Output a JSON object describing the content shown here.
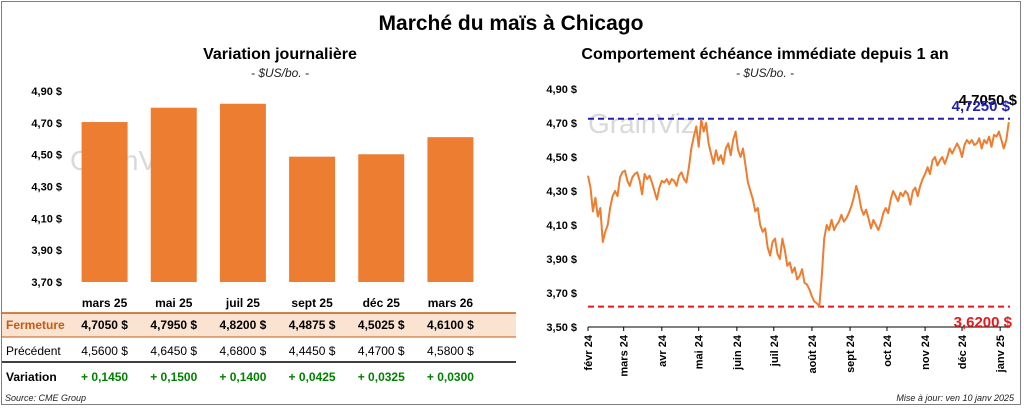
{
  "title": "Marché du maïs à Chicago",
  "colors": {
    "bar": "#ED7D31",
    "line": "#ED7D31",
    "high": "#1F1FB5",
    "low": "#E41A1C",
    "positive": "#008000",
    "row_highlight": "#FBE3D2"
  },
  "watermark": "GrainViz",
  "footer": {
    "source": "Source: CME Group",
    "updated": "Mise à jour: ven 10 janv 2025"
  },
  "chart_data": [
    {
      "type": "bar",
      "title": "Variation journalière",
      "subtitle": "- $US/bo. -",
      "categories": [
        "mars 25",
        "mai 25",
        "juil 25",
        "sept 25",
        "déc 25",
        "mars 26"
      ],
      "values": [
        4.705,
        4.795,
        4.82,
        4.4875,
        4.5025,
        4.61
      ],
      "ylim": [
        3.7,
        4.9
      ],
      "yticks": [
        "3,70 $",
        "3,90 $",
        "4,10 $",
        "4,30 $",
        "4,50 $",
        "4,70 $",
        "4,90 $"
      ],
      "grid": false,
      "table": [
        {
          "label": "Fermeture",
          "values": [
            "4,7050  $",
            "4,7950  $",
            "4,8200  $",
            "4,4875  $",
            "4,5025  $",
            "4,6100  $"
          ]
        },
        {
          "label": "Précédent",
          "values": [
            "4,5600  $",
            "4,6450  $",
            "4,6800  $",
            "4,4450  $",
            "4,4700  $",
            "4,5800  $"
          ]
        },
        {
          "label": "Variation",
          "values": [
            "+ 0,1450",
            "+ 0,1500",
            "+ 0,1400",
            "+ 0,0425",
            "+ 0,0325",
            "+ 0,0300"
          ]
        }
      ]
    },
    {
      "type": "line",
      "title": "Comportement  échéance immédiate  depuis 1 an",
      "subtitle": "- $US/bo. -",
      "ylim": [
        3.5,
        4.9
      ],
      "yticks": [
        "3,50 $",
        "3,70 $",
        "3,90 $",
        "4,10 $",
        "4,30 $",
        "4,50 $",
        "4,70 $",
        "4,90 $"
      ],
      "xticks": [
        "févr 24",
        "mars 24",
        "avr 24",
        "mai 24",
        "juin 24",
        "juil 24",
        "août 24",
        "sept 24",
        "oct 24",
        "nov 24",
        "déc 24",
        "janv 25"
      ],
      "x_range_days": [
        0,
        343
      ],
      "xtick_days": [
        0,
        29,
        60,
        90,
        121,
        151,
        182,
        213,
        243,
        274,
        304,
        335
      ],
      "high": {
        "value": 4.725,
        "label": "4,7250 $"
      },
      "low": {
        "value": 3.62,
        "label": "3,6200 $"
      },
      "last": {
        "value": 4.705,
        "label": "4,7050 $"
      },
      "points": [
        [
          0,
          4.39
        ],
        [
          2,
          4.32
        ],
        [
          4,
          4.18
        ],
        [
          6,
          4.26
        ],
        [
          8,
          4.15
        ],
        [
          10,
          4.2
        ],
        [
          12,
          4.0
        ],
        [
          14,
          4.06
        ],
        [
          16,
          4.1
        ],
        [
          18,
          4.2
        ],
        [
          20,
          4.27
        ],
        [
          22,
          4.3
        ],
        [
          24,
          4.27
        ],
        [
          26,
          4.38
        ],
        [
          28,
          4.41
        ],
        [
          30,
          4.42
        ],
        [
          32,
          4.36
        ],
        [
          34,
          4.33
        ],
        [
          36,
          4.38
        ],
        [
          38,
          4.4
        ],
        [
          40,
          4.41
        ],
        [
          42,
          4.36
        ],
        [
          44,
          4.28
        ],
        [
          46,
          4.4
        ],
        [
          48,
          4.37
        ],
        [
          50,
          4.39
        ],
        [
          52,
          4.35
        ],
        [
          54,
          4.3
        ],
        [
          56,
          4.25
        ],
        [
          58,
          4.32
        ],
        [
          60,
          4.36
        ],
        [
          62,
          4.35
        ],
        [
          64,
          4.37
        ],
        [
          66,
          4.34
        ],
        [
          68,
          4.37
        ],
        [
          70,
          4.36
        ],
        [
          72,
          4.33
        ],
        [
          74,
          4.39
        ],
        [
          76,
          4.41
        ],
        [
          78,
          4.37
        ],
        [
          80,
          4.35
        ],
        [
          82,
          4.44
        ],
        [
          84,
          4.55
        ],
        [
          86,
          4.62
        ],
        [
          88,
          4.68
        ],
        [
          90,
          4.56
        ],
        [
          92,
          4.72
        ],
        [
          94,
          4.65
        ],
        [
          96,
          4.7
        ],
        [
          98,
          4.58
        ],
        [
          100,
          4.52
        ],
        [
          102,
          4.46
        ],
        [
          104,
          4.54
        ],
        [
          106,
          4.48
        ],
        [
          108,
          4.51
        ],
        [
          110,
          4.46
        ],
        [
          112,
          4.55
        ],
        [
          114,
          4.58
        ],
        [
          116,
          4.51
        ],
        [
          118,
          4.6
        ],
        [
          120,
          4.65
        ],
        [
          122,
          4.54
        ],
        [
          124,
          4.5
        ],
        [
          126,
          4.55
        ],
        [
          128,
          4.45
        ],
        [
          130,
          4.35
        ],
        [
          132,
          4.3
        ],
        [
          134,
          4.25
        ],
        [
          136,
          4.18
        ],
        [
          138,
          4.2
        ],
        [
          140,
          4.1
        ],
        [
          142,
          4.06
        ],
        [
          144,
          4.08
        ],
        [
          146,
          3.97
        ],
        [
          148,
          3.92
        ],
        [
          150,
          4.0
        ],
        [
          152,
          4.02
        ],
        [
          154,
          3.93
        ],
        [
          156,
          3.9
        ],
        [
          158,
          4.02
        ],
        [
          160,
          3.95
        ],
        [
          162,
          3.86
        ],
        [
          164,
          3.88
        ],
        [
          166,
          3.82
        ],
        [
          168,
          3.85
        ],
        [
          170,
          3.78
        ],
        [
          172,
          3.8
        ],
        [
          174,
          3.84
        ],
        [
          176,
          3.76
        ],
        [
          178,
          3.75
        ],
        [
          180,
          3.72
        ],
        [
          182,
          3.68
        ],
        [
          184,
          3.65
        ],
        [
          186,
          3.64
        ],
        [
          188,
          3.62
        ],
        [
          190,
          3.8
        ],
        [
          192,
          4.02
        ],
        [
          194,
          4.1
        ],
        [
          196,
          4.07
        ],
        [
          198,
          4.13
        ],
        [
          200,
          4.07
        ],
        [
          202,
          4.1
        ],
        [
          204,
          4.12
        ],
        [
          206,
          4.16
        ],
        [
          208,
          4.12
        ],
        [
          210,
          4.14
        ],
        [
          212,
          4.17
        ],
        [
          214,
          4.21
        ],
        [
          216,
          4.26
        ],
        [
          218,
          4.33
        ],
        [
          220,
          4.28
        ],
        [
          222,
          4.2
        ],
        [
          224,
          4.16
        ],
        [
          226,
          4.19
        ],
        [
          228,
          4.14
        ],
        [
          230,
          4.08
        ],
        [
          232,
          4.13
        ],
        [
          234,
          4.1
        ],
        [
          236,
          4.07
        ],
        [
          238,
          4.11
        ],
        [
          240,
          4.17
        ],
        [
          242,
          4.2
        ],
        [
          244,
          4.17
        ],
        [
          246,
          4.25
        ],
        [
          248,
          4.3
        ],
        [
          250,
          4.27
        ],
        [
          252,
          4.24
        ],
        [
          254,
          4.29
        ],
        [
          256,
          4.27
        ],
        [
          258,
          4.3
        ],
        [
          260,
          4.28
        ],
        [
          262,
          4.22
        ],
        [
          264,
          4.3
        ],
        [
          266,
          4.32
        ],
        [
          268,
          4.27
        ],
        [
          270,
          4.33
        ],
        [
          272,
          4.37
        ],
        [
          274,
          4.4
        ],
        [
          276,
          4.44
        ],
        [
          278,
          4.4
        ],
        [
          280,
          4.48
        ],
        [
          282,
          4.5
        ],
        [
          284,
          4.45
        ],
        [
          286,
          4.48
        ],
        [
          288,
          4.5
        ],
        [
          290,
          4.46
        ],
        [
          292,
          4.5
        ],
        [
          294,
          4.55
        ],
        [
          296,
          4.52
        ],
        [
          298,
          4.55
        ],
        [
          300,
          4.58
        ],
        [
          302,
          4.55
        ],
        [
          304,
          4.5
        ],
        [
          306,
          4.57
        ],
        [
          308,
          4.6
        ],
        [
          310,
          4.58
        ],
        [
          312,
          4.6
        ],
        [
          314,
          4.57
        ],
        [
          316,
          4.58
        ],
        [
          318,
          4.61
        ],
        [
          320,
          4.55
        ],
        [
          322,
          4.6
        ],
        [
          324,
          4.58
        ],
        [
          326,
          4.62
        ],
        [
          328,
          4.56
        ],
        [
          330,
          4.63
        ],
        [
          332,
          4.62
        ],
        [
          334,
          4.65
        ],
        [
          336,
          4.6
        ],
        [
          338,
          4.55
        ],
        [
          340,
          4.6
        ],
        [
          342,
          4.705
        ]
      ]
    }
  ]
}
